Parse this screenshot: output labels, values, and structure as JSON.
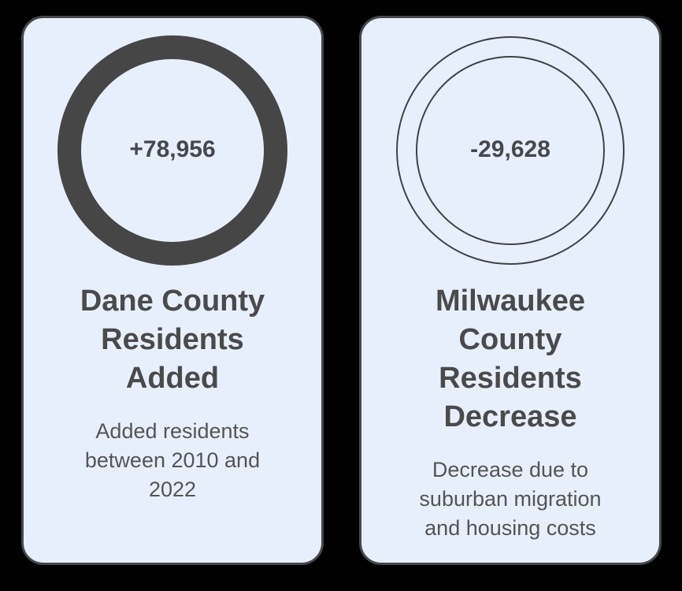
{
  "colors": {
    "page_background": "#000000",
    "card_background": "#e8effc",
    "card_border": "#45484b",
    "donut_ring": "#464646",
    "outline_circle": "#3f4245",
    "value_text": "#45484c",
    "title_text": "#4a4a4a",
    "subtitle_text": "#545454"
  },
  "cards": [
    {
      "name": "dane-county",
      "value": "+78,956",
      "title": "Dane County\nResidents\nAdded",
      "subtitle": "Added residents\nbetween 2010 and\n2022",
      "icon": "thick-donut-ring-icon"
    },
    {
      "name": "milwaukee-county",
      "value": "-29,628",
      "title": "Milwaukee\nCounty\nResidents\nDecrease",
      "subtitle": "Decrease due to\nsuburban migration\nand housing costs",
      "icon": "double-outline-circle-icon"
    }
  ],
  "chart_data": {
    "type": "table",
    "title": "",
    "items": [
      {
        "label": "Dane County Residents Added",
        "value": 78956,
        "value_display": "+78,956",
        "note": "Added residents between 2010 and 2022"
      },
      {
        "label": "Milwaukee County Residents Decrease",
        "value": -29628,
        "value_display": "-29,628",
        "note": "Decrease due to suburban migration and housing costs"
      }
    ]
  }
}
